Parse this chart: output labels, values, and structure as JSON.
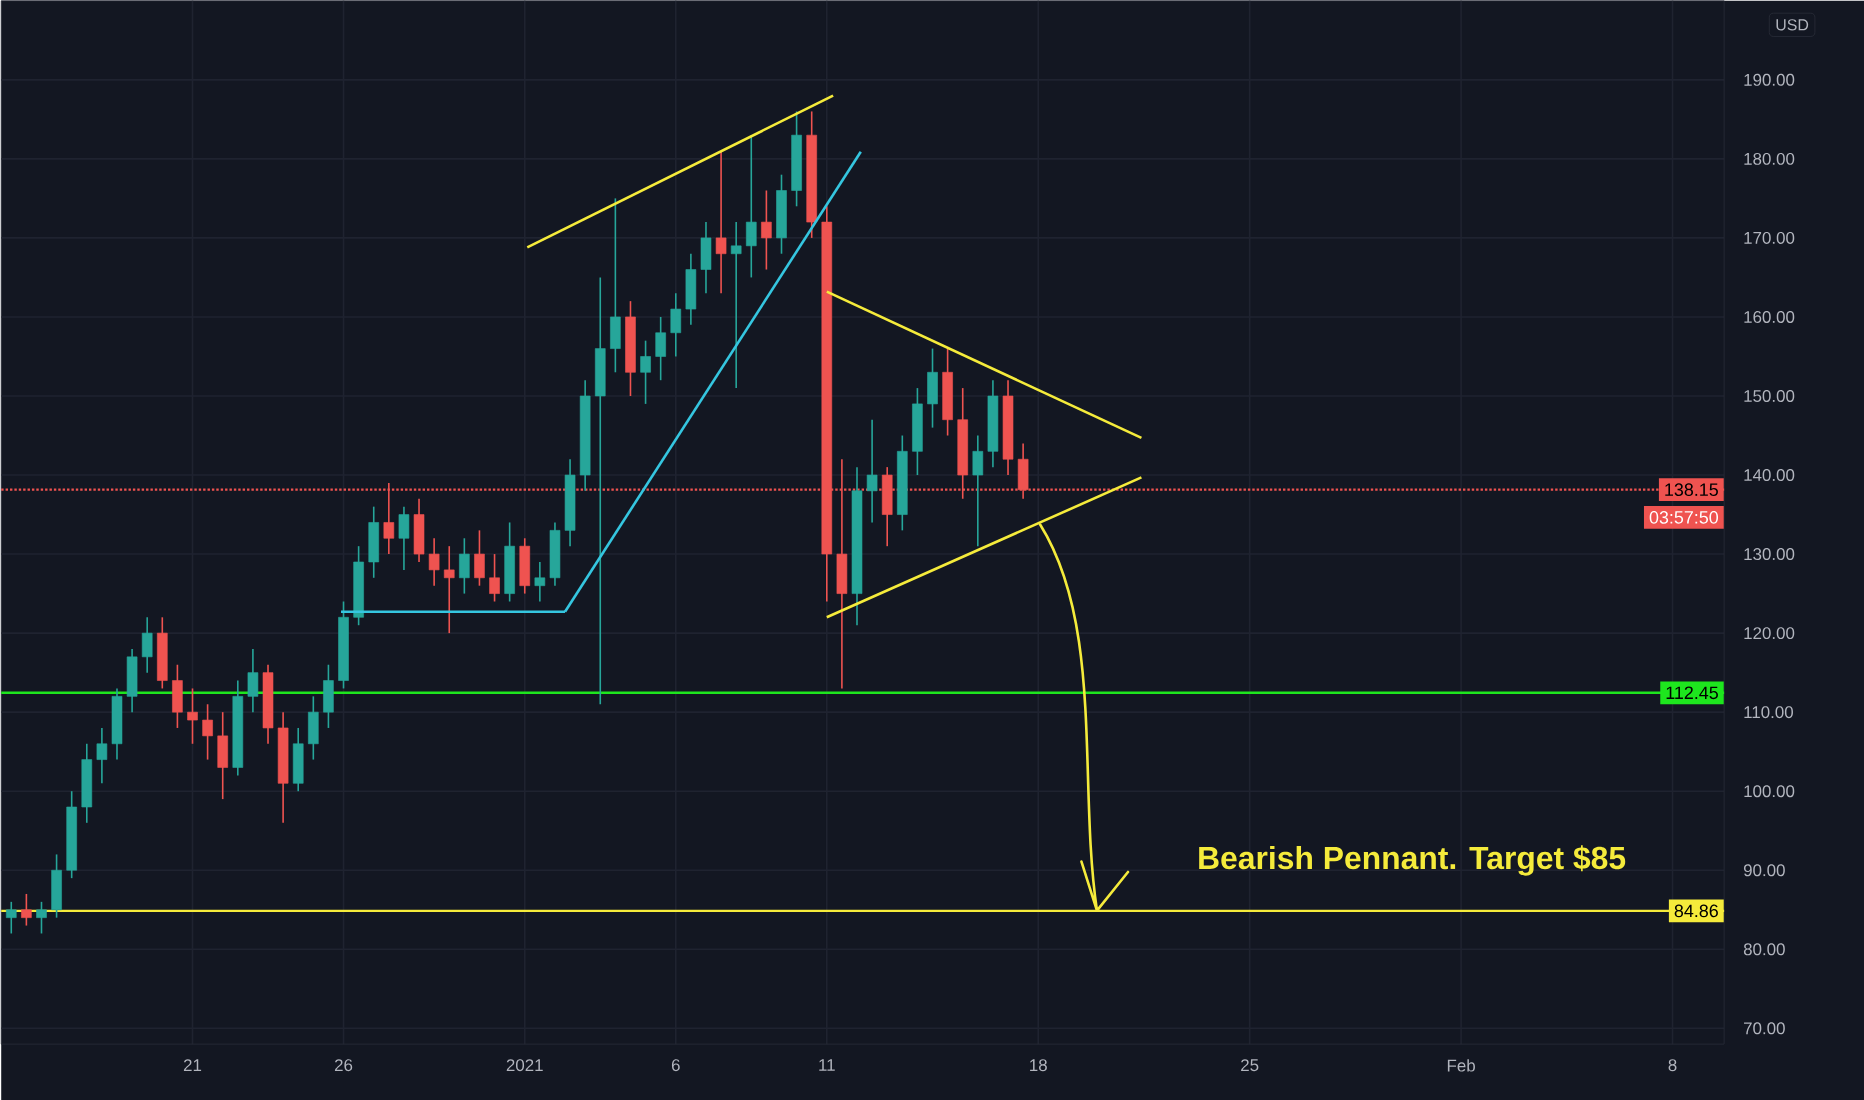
{
  "chart_data": {
    "type": "candlestick",
    "ylabel": "USD",
    "x": [
      "2020-12-15T00:00",
      "2020-12-15T12:00",
      "2020-12-16T00:00",
      "2020-12-16T12:00",
      "2020-12-17T00:00",
      "2020-12-17T12:00",
      "2020-12-18T00:00",
      "2020-12-18T12:00",
      "2020-12-19T00:00",
      "2020-12-19T12:00",
      "2020-12-20T00:00",
      "2020-12-20T12:00",
      "2020-12-21T00:00",
      "2020-12-21T12:00",
      "2020-12-22T00:00",
      "2020-12-22T12:00",
      "2020-12-23T00:00",
      "2020-12-23T12:00",
      "2020-12-24T00:00",
      "2020-12-24T12:00",
      "2020-12-25T00:00",
      "2020-12-25T12:00",
      "2020-12-26T00:00",
      "2020-12-26T12:00",
      "2020-12-27T00:00",
      "2020-12-27T12:00",
      "2020-12-28T00:00",
      "2020-12-28T12:00",
      "2020-12-29T00:00",
      "2020-12-29T12:00",
      "2020-12-30T00:00",
      "2020-12-30T12:00",
      "2020-12-31T00:00",
      "2020-12-31T12:00",
      "2021-01-01T00:00",
      "2021-01-01T12:00",
      "2021-01-02T00:00",
      "2021-01-02T12:00",
      "2021-01-03T00:00",
      "2021-01-03T12:00",
      "2021-01-04T00:00",
      "2021-01-04T12:00",
      "2021-01-05T00:00",
      "2021-01-05T12:00",
      "2021-01-06T00:00",
      "2021-01-06T12:00",
      "2021-01-07T00:00",
      "2021-01-07T12:00",
      "2021-01-08T00:00",
      "2021-01-08T12:00",
      "2021-01-09T00:00",
      "2021-01-09T12:00",
      "2021-01-10T00:00",
      "2021-01-10T12:00",
      "2021-01-11T00:00",
      "2021-01-11T12:00",
      "2021-01-12T00:00",
      "2021-01-12T12:00",
      "2021-01-13T00:00",
      "2021-01-13T12:00",
      "2021-01-14T00:00",
      "2021-01-14T12:00",
      "2021-01-15T00:00",
      "2021-01-15T12:00",
      "2021-01-16T00:00",
      "2021-01-16T12:00",
      "2021-01-17T00:00",
      "2021-01-17T12:00"
    ],
    "ohlc": [
      [
        84,
        86,
        82,
        85
      ],
      [
        85,
        87,
        83,
        84
      ],
      [
        84,
        86,
        82,
        85
      ],
      [
        85,
        92,
        84,
        90
      ],
      [
        90,
        100,
        89,
        98
      ],
      [
        98,
        106,
        96,
        104
      ],
      [
        104,
        108,
        101,
        106
      ],
      [
        106,
        113,
        104,
        112
      ],
      [
        112,
        118,
        110,
        117
      ],
      [
        117,
        122,
        115,
        120
      ],
      [
        120,
        122,
        113,
        114
      ],
      [
        114,
        116,
        108,
        110
      ],
      [
        110,
        113,
        106,
        109
      ],
      [
        109,
        111,
        104,
        107
      ],
      [
        107,
        110,
        99,
        103
      ],
      [
        103,
        114,
        102,
        112
      ],
      [
        112,
        118,
        110,
        115
      ],
      [
        115,
        116,
        106,
        108
      ],
      [
        108,
        110,
        96,
        101
      ],
      [
        101,
        108,
        100,
        106
      ],
      [
        106,
        112,
        104,
        110
      ],
      [
        110,
        116,
        108,
        114
      ],
      [
        114,
        124,
        113,
        122
      ],
      [
        122,
        131,
        121,
        129
      ],
      [
        129,
        136,
        127,
        134
      ],
      [
        134,
        139,
        130,
        132
      ],
      [
        132,
        136,
        128,
        135
      ],
      [
        135,
        137,
        129,
        130
      ],
      [
        130,
        132,
        126,
        128
      ],
      [
        128,
        131,
        120,
        127
      ],
      [
        127,
        132,
        125,
        130
      ],
      [
        130,
        133,
        126,
        127
      ],
      [
        127,
        130,
        124,
        125
      ],
      [
        125,
        134,
        124,
        131
      ],
      [
        131,
        132,
        125,
        126
      ],
      [
        126,
        129,
        124,
        127
      ],
      [
        127,
        134,
        126,
        133
      ],
      [
        133,
        142,
        131,
        140
      ],
      [
        140,
        152,
        138,
        150
      ],
      [
        150,
        165,
        111,
        156
      ],
      [
        156,
        175,
        153,
        160
      ],
      [
        160,
        162,
        150,
        153
      ],
      [
        153,
        157,
        149,
        155
      ],
      [
        155,
        160,
        152,
        158
      ],
      [
        158,
        163,
        155,
        161
      ],
      [
        161,
        168,
        159,
        166
      ],
      [
        166,
        172,
        163,
        170
      ],
      [
        170,
        181,
        163,
        168
      ],
      [
        168,
        172,
        151,
        169
      ],
      [
        169,
        183,
        165,
        172
      ],
      [
        172,
        176,
        166,
        170
      ],
      [
        170,
        178,
        168,
        176
      ],
      [
        176,
        186,
        174,
        183
      ],
      [
        183,
        186,
        170,
        172
      ],
      [
        172,
        174,
        124,
        130
      ],
      [
        130,
        142,
        113,
        125
      ],
      [
        125,
        141,
        121,
        138
      ],
      [
        138,
        147,
        134,
        140
      ],
      [
        140,
        141,
        131,
        135
      ],
      [
        135,
        145,
        133,
        143
      ],
      [
        143,
        151,
        140,
        149
      ],
      [
        149,
        156,
        146,
        153
      ],
      [
        153,
        156,
        145,
        147
      ],
      [
        147,
        151,
        137,
        140
      ],
      [
        140,
        145,
        131,
        143
      ],
      [
        143,
        152,
        141,
        150
      ],
      [
        150,
        152,
        140,
        142
      ],
      [
        142,
        144,
        137,
        138.15
      ]
    ],
    "series": [
      {
        "type": "line",
        "color": "#f5eb3b",
        "x": [
          "2021-01-01T02:00",
          "2021-01-11T05:00"
        ],
        "values": [
          168.8,
          188.0
        ]
      },
      {
        "type": "line",
        "color": "#35c6e0",
        "x": [
          "2021-01-02T08:00",
          "2021-01-12T03:00"
        ],
        "values": [
          122.7,
          180.9
        ]
      },
      {
        "type": "line",
        "color": "#35c6e0",
        "x": [
          "2020-12-25T22:00",
          "2021-01-02T08:00"
        ],
        "values": [
          122.7,
          122.7
        ]
      },
      {
        "type": "line",
        "color": "#f5eb3b",
        "x": [
          "2021-01-11T00:00",
          "2021-01-21T10:00"
        ],
        "values": [
          163.2,
          144.7
        ]
      },
      {
        "type": "line",
        "color": "#f5eb3b",
        "x": [
          "2021-01-11T00:00",
          "2021-01-21T10:00"
        ],
        "values": [
          122.0,
          139.7
        ]
      }
    ],
    "ref_lines": [
      {
        "axis": "y",
        "value": 112.45,
        "label": "112.45",
        "color": "#1ee61e"
      },
      {
        "axis": "y",
        "value": 84.86,
        "label": "84.86",
        "color": "#f5eb3b"
      },
      {
        "axis": "y",
        "value": 138.15,
        "label": "138.15",
        "color": "#ef5350",
        "line_style": "dotted"
      }
    ],
    "annotations": [
      "Bearish Pennant. Target $85",
      "03:57:50"
    ],
    "xlim": [
      "2020-12-14T16:00",
      "2021-02-09T17:00"
    ],
    "xticks": [
      {
        "value": "2020-12-21",
        "label": "21"
      },
      {
        "value": "2020-12-26",
        "label": "26"
      },
      {
        "value": "2021-01-01",
        "label": "2021"
      },
      {
        "value": "2021-01-06",
        "label": "6"
      },
      {
        "value": "2021-01-11",
        "label": "11"
      },
      {
        "value": "2021-01-18",
        "label": "18"
      },
      {
        "value": "2021-01-25",
        "label": "25"
      },
      {
        "value": "2021-02-01",
        "label": "Feb"
      },
      {
        "value": "2021-02-08",
        "label": "8"
      }
    ],
    "ylim": [
      68,
      200
    ],
    "yticks": [
      {
        "value": 70,
        "label": "70.00"
      },
      {
        "value": 80,
        "label": "80.00"
      },
      {
        "value": 90,
        "label": "90.00"
      },
      {
        "value": 100,
        "label": "100.00"
      },
      {
        "value": 110,
        "label": "110.00"
      },
      {
        "value": 120,
        "label": "120.00"
      },
      {
        "value": 130,
        "label": "130.00"
      },
      {
        "value": 140,
        "label": "140.00"
      },
      {
        "value": 150,
        "label": "150.00"
      },
      {
        "value": 160,
        "label": "160.00"
      },
      {
        "value": 170,
        "label": "170.00"
      },
      {
        "value": 180,
        "label": "180.00"
      },
      {
        "value": 190,
        "label": "190.00"
      }
    ],
    "grid": true
  }
}
